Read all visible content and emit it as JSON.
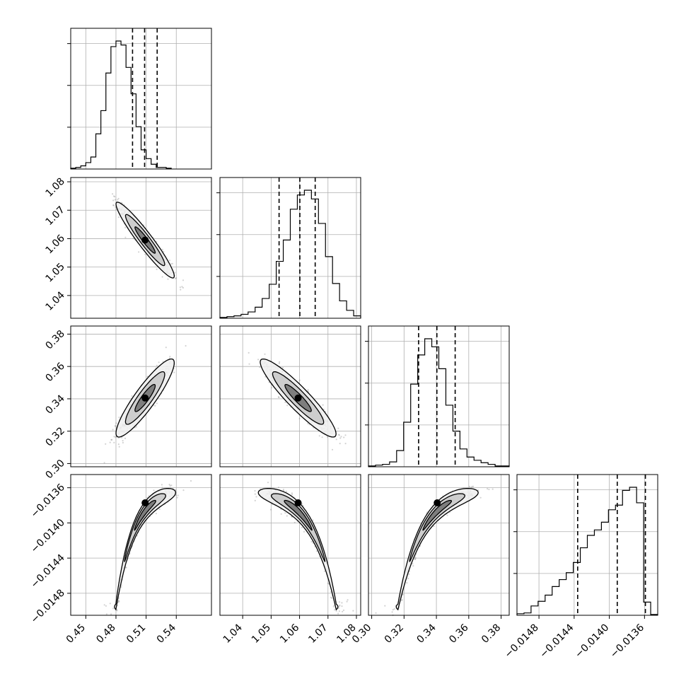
{
  "chart_data": {
    "type": "corner",
    "title": "",
    "parameters": [
      {
        "label": "",
        "range": [
          0.435,
          0.575
        ],
        "ticks": [
          0.45,
          0.48,
          0.51,
          0.54
        ],
        "tick_labels": [
          "0.45",
          "0.48",
          "0.51",
          "0.54"
        ],
        "mean": 0.509,
        "sigma": 0.0126,
        "quantiles": [
          0.4965,
          0.5085,
          0.521
        ]
      },
      {
        "label": "",
        "range": [
          1.032,
          1.0815
        ],
        "ticks": [
          1.04,
          1.05,
          1.06,
          1.07,
          1.08
        ],
        "tick_labels": [
          "1.04",
          "1.05",
          "1.06",
          "1.07",
          "1.08"
        ],
        "mean": 1.0595,
        "sigma": 0.0058,
        "quantiles": [
          1.0528,
          1.0601,
          1.0655
        ]
      },
      {
        "label": "",
        "range": [
          0.298,
          0.385
        ],
        "ticks": [
          0.3,
          0.32,
          0.34,
          0.36,
          0.38
        ],
        "tick_labels": [
          "0.30",
          "0.32",
          "0.34",
          "0.36",
          "0.38"
        ],
        "mean": 0.3405,
        "sigma": 0.0105,
        "quantiles": [
          0.329,
          0.3403,
          0.3516
        ]
      },
      {
        "label": "",
        "range": [
          -0.01505,
          -0.01345
        ],
        "ticks": [
          -0.0148,
          -0.0144,
          -0.014,
          -0.0136
        ],
        "tick_labels": [
          "−0.0148",
          "−0.0144",
          "−0.0140",
          "−0.0136"
        ],
        "mean": -0.01385,
        "sigma": 0.00022,
        "quantiles": [
          -0.01436,
          -0.01391,
          -0.01359
        ]
      }
    ],
    "histograms": [
      {
        "bins_start": 0.435,
        "bin_width": 0.005,
        "counts": [
          1,
          2,
          4,
          8,
          15,
          44,
          73,
          120,
          153,
          160,
          155,
          127,
          94,
          53,
          24,
          13,
          6,
          2,
          2,
          1
        ]
      },
      {
        "bins_start": 1.032,
        "bin_width": 0.002475,
        "counts": [
          1,
          2,
          3,
          5,
          8,
          14,
          25,
          43,
          72,
          99,
          138,
          156,
          162,
          151,
          120,
          78,
          44,
          22,
          10,
          3
        ]
      },
      {
        "bins_start": 0.298,
        "bin_width": 0.00435,
        "counts": [
          1,
          2,
          3,
          6,
          20,
          55,
          102,
          138,
          158,
          148,
          121,
          76,
          44,
          22,
          12,
          8,
          5,
          3,
          1,
          1
        ]
      },
      {
        "bins_start": -0.01505,
        "bin_width": 8e-05,
        "counts": [
          2,
          3,
          12,
          18,
          26,
          37,
          46,
          55,
          68,
          87,
          103,
          110,
          120,
          136,
          142,
          161,
          165,
          145,
          17,
          1
        ]
      }
    ],
    "correlations": {
      "1,0": -0.95,
      "2,0": 0.9,
      "2,1": -0.92,
      "3,0": 0.85,
      "3,1": -0.85,
      "3,2": 0.85
    },
    "density_levels": [
      "1 sigma",
      "2 sigma",
      "3 sigma"
    ],
    "grid": true,
    "colors": {
      "line": "#000000",
      "grid": "#b0b0b0",
      "points": "#808080",
      "fill_light": "#eeeeee",
      "fill_dark": "#000000"
    }
  }
}
